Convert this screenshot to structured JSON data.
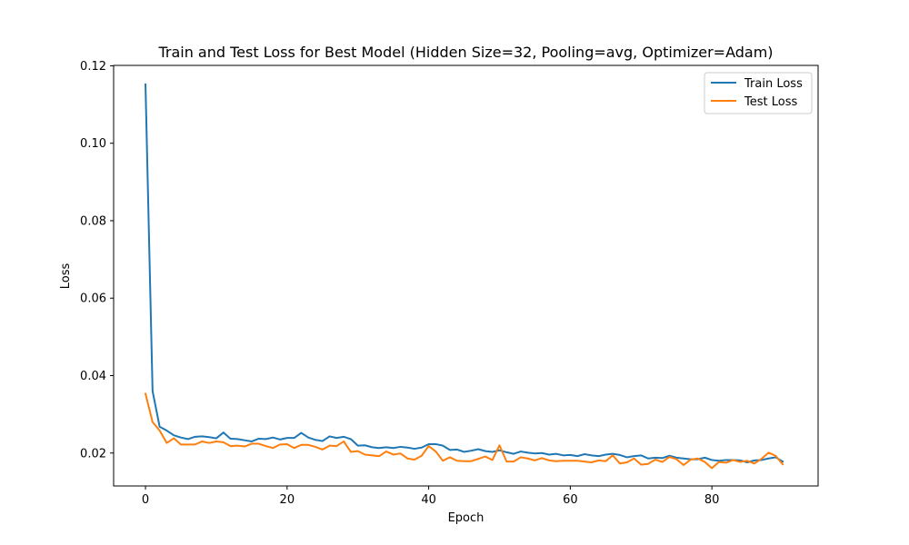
{
  "chart_data": {
    "type": "line",
    "title": "Train and Test Loss for Best Model (Hidden Size=32, Pooling=avg, Optimizer=Adam)",
    "xlabel": "Epoch",
    "ylabel": "Loss",
    "xlim": [
      -4.5,
      95
    ],
    "ylim": [
      0.0115,
      0.1201
    ],
    "xticks": [
      0,
      20,
      40,
      60,
      80
    ],
    "xtick_labels": [
      "0",
      "20",
      "40",
      "60",
      "80"
    ],
    "yticks": [
      0.02,
      0.04,
      0.06,
      0.08,
      0.1,
      0.12
    ],
    "ytick_labels": [
      "0.02",
      "0.04",
      "0.06",
      "0.08",
      "0.10",
      "0.12"
    ],
    "grid": false,
    "legend_position": "top-right",
    "series": [
      {
        "name": "Train Loss",
        "color": "#1f77b4",
        "values": [
          0.1152,
          0.036,
          0.0268,
          0.0258,
          0.0246,
          0.024,
          0.0236,
          0.0242,
          0.0243,
          0.0241,
          0.0238,
          0.0253,
          0.0237,
          0.0236,
          0.0233,
          0.023,
          0.0237,
          0.0236,
          0.024,
          0.0235,
          0.0239,
          0.0239,
          0.0252,
          0.024,
          0.0234,
          0.0231,
          0.0243,
          0.0239,
          0.0242,
          0.0236,
          0.0219,
          0.022,
          0.0215,
          0.0213,
          0.0215,
          0.0213,
          0.0216,
          0.0214,
          0.0211,
          0.0214,
          0.0223,
          0.0223,
          0.0219,
          0.0208,
          0.0209,
          0.0203,
          0.0206,
          0.021,
          0.0205,
          0.0203,
          0.0207,
          0.0202,
          0.0198,
          0.0204,
          0.0201,
          0.0199,
          0.02,
          0.0196,
          0.0198,
          0.0194,
          0.0195,
          0.0192,
          0.0197,
          0.0194,
          0.0192,
          0.0196,
          0.0198,
          0.0195,
          0.0189,
          0.0192,
          0.0194,
          0.0186,
          0.0188,
          0.0187,
          0.0193,
          0.0188,
          0.0186,
          0.0184,
          0.0184,
          0.0188,
          0.0182,
          0.018,
          0.0182,
          0.0182,
          0.0181,
          0.0176,
          0.0181,
          0.0182,
          0.0186,
          0.0189,
          0.0178
        ]
      },
      {
        "name": "Test Loss",
        "color": "#ff7f0e",
        "values": [
          0.0353,
          0.028,
          0.0258,
          0.0226,
          0.0238,
          0.0222,
          0.0222,
          0.0222,
          0.023,
          0.0226,
          0.023,
          0.0228,
          0.0218,
          0.0219,
          0.0217,
          0.0224,
          0.0224,
          0.0218,
          0.0213,
          0.0222,
          0.0223,
          0.0213,
          0.0221,
          0.0221,
          0.0216,
          0.0209,
          0.0219,
          0.0218,
          0.023,
          0.0203,
          0.0205,
          0.0196,
          0.0194,
          0.0192,
          0.0204,
          0.0196,
          0.0199,
          0.0186,
          0.0183,
          0.0193,
          0.0218,
          0.0204,
          0.018,
          0.0189,
          0.018,
          0.0179,
          0.0179,
          0.0185,
          0.0191,
          0.0182,
          0.022,
          0.0178,
          0.0178,
          0.0189,
          0.0186,
          0.0181,
          0.0187,
          0.0181,
          0.0179,
          0.018,
          0.018,
          0.018,
          0.0178,
          0.0176,
          0.0181,
          0.0179,
          0.0194,
          0.0173,
          0.0176,
          0.0186,
          0.017,
          0.0172,
          0.0183,
          0.0177,
          0.019,
          0.0184,
          0.0169,
          0.0183,
          0.0186,
          0.0177,
          0.0161,
          0.0177,
          0.0175,
          0.0182,
          0.0177,
          0.018,
          0.0173,
          0.0185,
          0.0201,
          0.0193,
          0.0171
        ]
      }
    ]
  }
}
